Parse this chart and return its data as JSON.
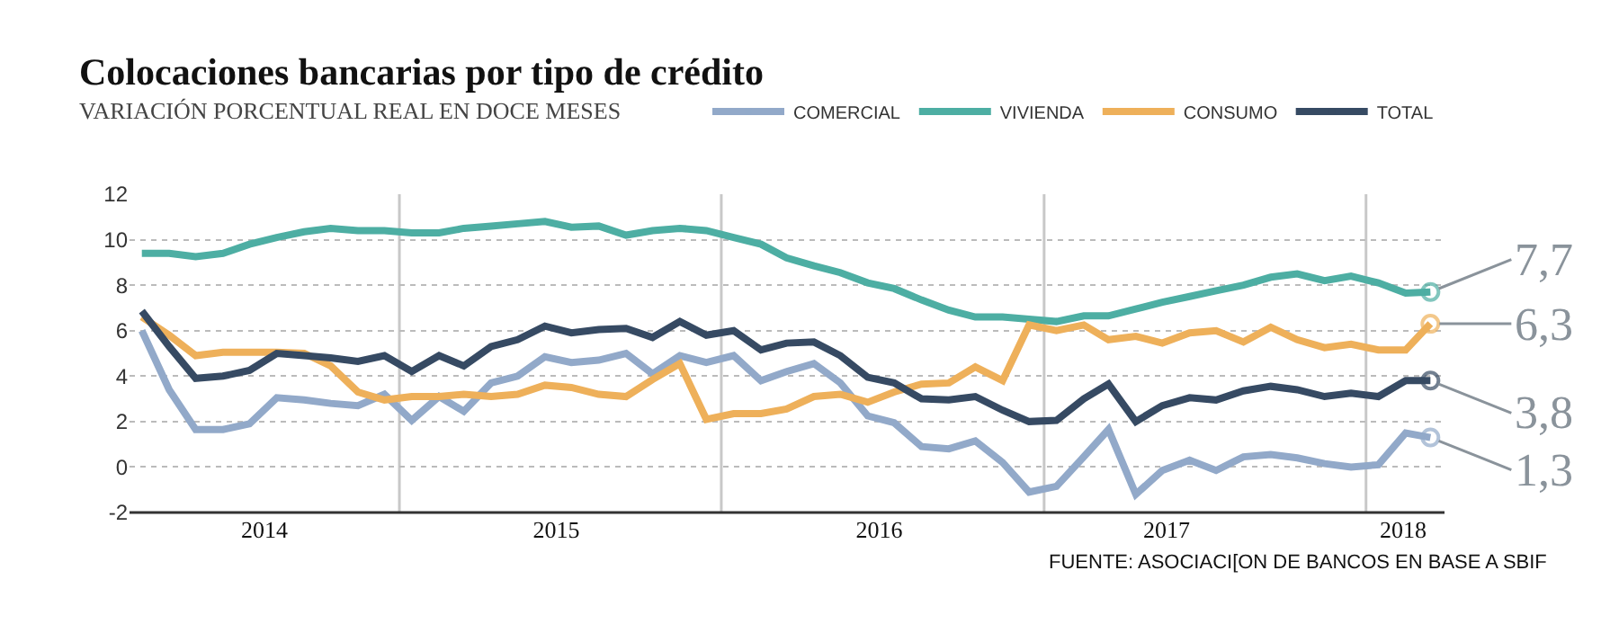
{
  "chart_data": {
    "type": "line",
    "title": "Colocaciones bancarias por tipo de crédito",
    "subtitle": "VARIACIÓN PORCENTUAL REAL EN DOCE MESES",
    "annotations": [
      "FUENTE: ASOCIACI[ON DE BANCOS EN BASE A SBIF"
    ],
    "x": [
      "2014-03-15",
      "2014-04-15",
      "2014-05-15",
      "2014-06-15",
      "2014-07-15",
      "2014-08-15",
      "2014-09-15",
      "2014-10-15",
      "2014-11-15",
      "2014-12-15",
      "2015-01-15",
      "2015-02-15",
      "2015-03-15",
      "2015-04-15",
      "2015-05-15",
      "2015-06-15",
      "2015-07-15",
      "2015-08-15",
      "2015-09-15",
      "2015-10-15",
      "2015-11-15",
      "2015-12-15",
      "2016-01-15",
      "2016-02-15",
      "2016-03-15",
      "2016-04-15",
      "2016-05-15",
      "2016-06-15",
      "2016-07-15",
      "2016-08-15",
      "2016-09-15",
      "2016-10-15",
      "2016-11-15",
      "2016-12-15",
      "2017-01-15",
      "2017-02-15",
      "2017-03-15",
      "2017-04-15",
      "2017-05-15",
      "2017-06-15",
      "2017-07-15",
      "2017-08-15",
      "2017-09-15",
      "2017-10-15",
      "2017-11-15",
      "2017-12-15",
      "2018-01-15",
      "2018-02-15",
      "2018-03-15"
    ],
    "series": [
      {
        "name": "COMERCIAL",
        "color": "#92a9c9",
        "values": [
          6.0,
          3.4,
          1.65,
          1.65,
          1.9,
          3.05,
          2.95,
          2.8,
          2.7,
          3.2,
          2.05,
          3.1,
          2.45,
          3.7,
          4.0,
          4.85,
          4.6,
          4.7,
          5.0,
          4.1,
          4.9,
          4.6,
          4.9,
          3.8,
          4.2,
          4.55,
          3.7,
          2.25,
          1.95,
          0.9,
          0.8,
          1.15,
          0.2,
          -1.1,
          -0.85,
          0.45,
          1.65,
          -1.2,
          -0.15,
          0.3,
          -0.15,
          0.45,
          0.55,
          0.4,
          0.15,
          0.0,
          0.1,
          1.5,
          1.3
        ],
        "value_labels": [
          null,
          null,
          null,
          null,
          null,
          null,
          null,
          null,
          null,
          null,
          null,
          null,
          null,
          null,
          null,
          null,
          null,
          null,
          null,
          null,
          null,
          null,
          null,
          null,
          null,
          null,
          null,
          null,
          null,
          null,
          null,
          null,
          null,
          null,
          null,
          null,
          null,
          null,
          null,
          null,
          null,
          null,
          null,
          null,
          null,
          null,
          null,
          null,
          "1,3"
        ]
      },
      {
        "name": "VIVIENDA",
        "color": "#4daea3",
        "values": [
          9.4,
          9.4,
          9.25,
          9.4,
          9.8,
          10.1,
          10.35,
          10.5,
          10.4,
          10.4,
          10.3,
          10.3,
          10.5,
          10.6,
          10.7,
          10.8,
          10.55,
          10.6,
          10.2,
          10.4,
          10.5,
          10.4,
          10.1,
          9.8,
          9.2,
          8.85,
          8.55,
          8.1,
          7.85,
          7.35,
          6.9,
          6.6,
          6.6,
          6.5,
          6.4,
          6.65,
          6.65,
          6.95,
          7.25,
          7.5,
          7.75,
          8.0,
          8.35,
          8.5,
          8.2,
          8.4,
          8.1,
          7.65,
          7.7
        ],
        "value_labels": [
          null,
          null,
          null,
          null,
          null,
          null,
          null,
          null,
          null,
          null,
          null,
          null,
          null,
          null,
          null,
          null,
          null,
          null,
          null,
          null,
          null,
          null,
          null,
          null,
          null,
          null,
          null,
          null,
          null,
          null,
          null,
          null,
          null,
          null,
          null,
          null,
          null,
          null,
          null,
          null,
          null,
          null,
          null,
          null,
          null,
          null,
          null,
          null,
          "7,7"
        ]
      },
      {
        "name": "CONSUMO",
        "color": "#eeb05a",
        "values": [
          6.6,
          5.8,
          4.9,
          5.05,
          5.05,
          5.05,
          5.0,
          4.45,
          3.3,
          2.95,
          3.1,
          3.1,
          3.2,
          3.1,
          3.2,
          3.6,
          3.5,
          3.2,
          3.1,
          3.85,
          4.55,
          2.1,
          2.35,
          2.35,
          2.55,
          3.1,
          3.2,
          2.85,
          3.3,
          3.65,
          3.7,
          4.4,
          3.8,
          6.25,
          6.0,
          6.25,
          5.6,
          5.75,
          5.45,
          5.9,
          6.0,
          5.5,
          6.15,
          5.6,
          5.25,
          5.4,
          5.15,
          5.15,
          6.3
        ],
        "value_labels": [
          null,
          null,
          null,
          null,
          null,
          null,
          null,
          null,
          null,
          null,
          null,
          null,
          null,
          null,
          null,
          null,
          null,
          null,
          null,
          null,
          null,
          null,
          null,
          null,
          null,
          null,
          null,
          null,
          null,
          null,
          null,
          null,
          null,
          null,
          null,
          null,
          null,
          null,
          null,
          null,
          null,
          null,
          null,
          null,
          null,
          null,
          null,
          null,
          "6,3"
        ]
      },
      {
        "name": "TOTAL",
        "color": "#364a63",
        "values": [
          6.86,
          5.3,
          3.9,
          4.0,
          4.25,
          5.0,
          4.9,
          4.8,
          4.65,
          4.9,
          4.2,
          4.9,
          4.45,
          5.3,
          5.6,
          6.2,
          5.9,
          6.05,
          6.1,
          5.7,
          6.4,
          5.8,
          6.0,
          5.15,
          5.45,
          5.5,
          4.9,
          3.95,
          3.7,
          3.0,
          2.95,
          3.1,
          2.5,
          2.0,
          2.05,
          3.0,
          3.65,
          2.0,
          2.7,
          3.05,
          2.95,
          3.35,
          3.55,
          3.4,
          3.1,
          3.25,
          3.1,
          3.8,
          3.8
        ],
        "value_labels": [
          null,
          null,
          null,
          null,
          null,
          null,
          null,
          null,
          null,
          null,
          null,
          null,
          null,
          null,
          null,
          null,
          null,
          null,
          null,
          null,
          null,
          null,
          null,
          null,
          null,
          null,
          null,
          null,
          null,
          null,
          null,
          null,
          null,
          null,
          null,
          null,
          null,
          null,
          null,
          null,
          null,
          null,
          null,
          null,
          null,
          null,
          null,
          null,
          "3,8"
        ]
      }
    ],
    "xlim": [
      "2014-03-01",
      "2018-03-31"
    ],
    "xticks": [
      {
        "value": "2014-08-01",
        "label": "2014"
      },
      {
        "value": "2015-06-28",
        "label": "2015"
      },
      {
        "value": "2016-06-28",
        "label": "2016"
      },
      {
        "value": "2017-05-20",
        "label": "2017"
      },
      {
        "value": "2018-02-12",
        "label": "2018"
      }
    ],
    "ylim": [
      -2,
      12
    ],
    "yticks": [
      -2,
      0,
      2,
      4,
      6,
      8,
      10,
      12
    ],
    "ref_lines": [
      {
        "axis": "x",
        "value": "2015-01-01",
        "color": "#c8c8c8"
      },
      {
        "axis": "x",
        "value": "2016-01-01",
        "color": "#c8c8c8"
      },
      {
        "axis": "x",
        "value": "2017-01-01",
        "color": "#c8c8c8"
      },
      {
        "axis": "x",
        "value": "2018-01-01",
        "color": "#c8c8c8"
      }
    ],
    "grid": "y",
    "line_style": "solid",
    "legend": "top right"
  }
}
